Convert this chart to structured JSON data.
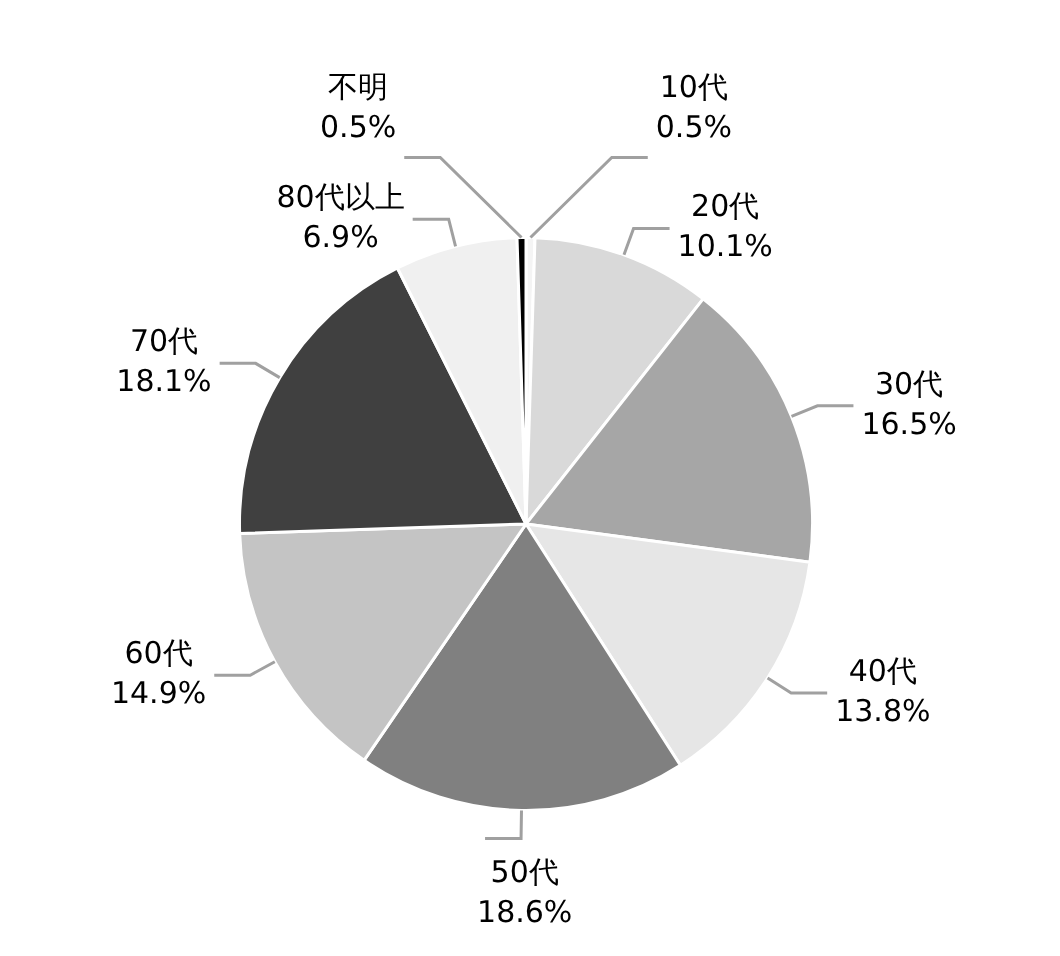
{
  "chart_data": {
    "type": "pie",
    "categories": [
      "10代",
      "20代",
      "30代",
      "40代",
      "50代",
      "60代",
      "70代",
      "80代以上",
      "不明"
    ],
    "values": [
      0.5,
      10.1,
      16.5,
      13.8,
      18.6,
      14.9,
      18.1,
      6.9,
      0.5
    ],
    "value_labels": [
      "0.5%",
      "10.1%",
      "16.5%",
      "13.8%",
      "18.6%",
      "14.9%",
      "18.1%",
      "6.9%",
      "0.5%"
    ],
    "colors": [
      "#f4f4f4",
      "#d9d9d9",
      "#a6a6a6",
      "#e6e6e6",
      "#808080",
      "#c4c4c4",
      "#404040",
      "#f0f0f0",
      "#000000"
    ],
    "legend": false
  }
}
